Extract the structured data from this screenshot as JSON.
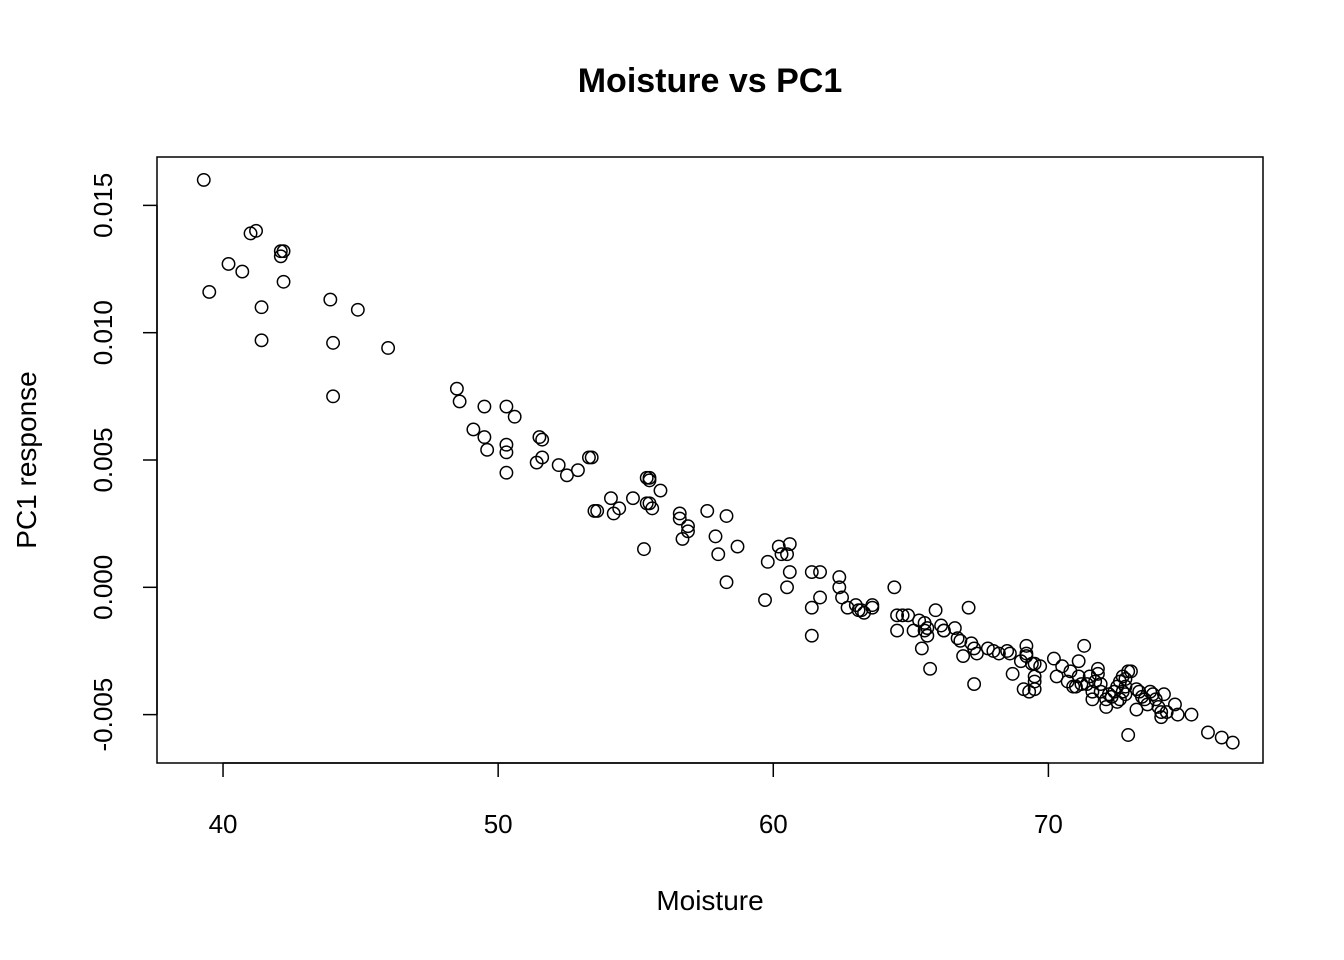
{
  "chart_data": {
    "type": "scatter",
    "title": "Moisture vs PC1",
    "xlabel": "Moisture",
    "ylabel": "PC1  response",
    "xlim": [
      37.6,
      77.8
    ],
    "ylim": [
      -0.0069,
      0.0169
    ],
    "xticks": [
      40,
      50,
      60,
      70
    ],
    "yticks": [
      -0.005,
      0.0,
      0.005,
      0.01,
      0.015
    ],
    "ytick_labels": [
      "-0.005",
      "0.000",
      "0.005",
      "0.010",
      "0.015"
    ],
    "marker": "open-circle",
    "grid": false,
    "legend": "none",
    "points": [
      [
        39.3,
        0.016
      ],
      [
        39.5,
        0.0116
      ],
      [
        40.2,
        0.0127
      ],
      [
        40.7,
        0.0124
      ],
      [
        41.0,
        0.0139
      ],
      [
        41.2,
        0.014
      ],
      [
        41.4,
        0.011
      ],
      [
        41.4,
        0.0097
      ],
      [
        42.1,
        0.013
      ],
      [
        42.1,
        0.0132
      ],
      [
        42.2,
        0.0132
      ],
      [
        42.2,
        0.012
      ],
      [
        43.9,
        0.0113
      ],
      [
        44.0,
        0.0096
      ],
      [
        44.0,
        0.0075
      ],
      [
        44.9,
        0.0109
      ],
      [
        46.0,
        0.0094
      ],
      [
        48.5,
        0.0078
      ],
      [
        48.6,
        0.0073
      ],
      [
        49.1,
        0.0062
      ],
      [
        49.5,
        0.0071
      ],
      [
        49.5,
        0.0059
      ],
      [
        49.6,
        0.0054
      ],
      [
        50.3,
        0.0071
      ],
      [
        50.3,
        0.0056
      ],
      [
        50.3,
        0.0053
      ],
      [
        50.3,
        0.0045
      ],
      [
        50.6,
        0.0067
      ],
      [
        51.4,
        0.0049
      ],
      [
        51.5,
        0.0059
      ],
      [
        51.6,
        0.0058
      ],
      [
        51.6,
        0.0051
      ],
      [
        52.2,
        0.0048
      ],
      [
        52.5,
        0.0044
      ],
      [
        52.9,
        0.0046
      ],
      [
        53.3,
        0.0051
      ],
      [
        53.4,
        0.0051
      ],
      [
        53.5,
        0.003
      ],
      [
        53.6,
        0.003
      ],
      [
        54.1,
        0.0035
      ],
      [
        54.2,
        0.0029
      ],
      [
        54.4,
        0.0031
      ],
      [
        54.9,
        0.0035
      ],
      [
        55.3,
        0.0015
      ],
      [
        55.4,
        0.0043
      ],
      [
        55.4,
        0.0033
      ],
      [
        55.5,
        0.0043
      ],
      [
        55.5,
        0.0042
      ],
      [
        55.5,
        0.0033
      ],
      [
        55.6,
        0.0031
      ],
      [
        55.9,
        0.0038
      ],
      [
        56.6,
        0.0029
      ],
      [
        56.6,
        0.0027
      ],
      [
        56.7,
        0.0019
      ],
      [
        56.9,
        0.0024
      ],
      [
        56.9,
        0.0022
      ],
      [
        57.6,
        0.003
      ],
      [
        57.9,
        0.002
      ],
      [
        58.0,
        0.0013
      ],
      [
        58.3,
        0.0028
      ],
      [
        58.3,
        0.0002
      ],
      [
        58.7,
        0.0016
      ],
      [
        59.7,
        -0.0005
      ],
      [
        59.8,
        0.001
      ],
      [
        60.2,
        0.0016
      ],
      [
        60.3,
        0.0013
      ],
      [
        60.5,
        0.0013
      ],
      [
        60.5,
        0.0
      ],
      [
        60.6,
        0.0017
      ],
      [
        60.6,
        0.0006
      ],
      [
        61.4,
        0.0006
      ],
      [
        61.4,
        -0.0008
      ],
      [
        61.4,
        -0.0019
      ],
      [
        61.7,
        0.0006
      ],
      [
        61.7,
        -0.0004
      ],
      [
        62.4,
        0.0004
      ],
      [
        62.4,
        0.0
      ],
      [
        62.5,
        -0.0004
      ],
      [
        62.7,
        -0.0008
      ],
      [
        63.0,
        -0.0007
      ],
      [
        63.1,
        -0.0009
      ],
      [
        63.2,
        -0.0009
      ],
      [
        63.3,
        -0.001
      ],
      [
        63.6,
        -0.0007
      ],
      [
        63.6,
        -0.0008
      ],
      [
        64.4,
        0.0
      ],
      [
        64.5,
        -0.0011
      ],
      [
        64.5,
        -0.0017
      ],
      [
        64.7,
        -0.0011
      ],
      [
        64.9,
        -0.0011
      ],
      [
        65.1,
        -0.0017
      ],
      [
        65.3,
        -0.0013
      ],
      [
        65.4,
        -0.0024
      ],
      [
        65.5,
        -0.0014
      ],
      [
        65.5,
        -0.0017
      ],
      [
        65.6,
        -0.0016
      ],
      [
        65.6,
        -0.0019
      ],
      [
        65.7,
        -0.0032
      ],
      [
        65.9,
        -0.0009
      ],
      [
        66.1,
        -0.0015
      ],
      [
        66.2,
        -0.0017
      ],
      [
        66.2,
        -0.0017
      ],
      [
        66.6,
        -0.0016
      ],
      [
        66.7,
        -0.002
      ],
      [
        66.8,
        -0.0021
      ],
      [
        66.9,
        -0.0027
      ],
      [
        67.1,
        -0.0008
      ],
      [
        67.2,
        -0.0022
      ],
      [
        67.3,
        -0.0024
      ],
      [
        67.3,
        -0.0038
      ],
      [
        67.4,
        -0.0026
      ],
      [
        67.8,
        -0.0024
      ],
      [
        68.0,
        -0.0025
      ],
      [
        68.2,
        -0.0026
      ],
      [
        68.5,
        -0.0025
      ],
      [
        68.6,
        -0.0026
      ],
      [
        68.7,
        -0.0034
      ],
      [
        69.0,
        -0.0029
      ],
      [
        69.1,
        -0.004
      ],
      [
        69.2,
        -0.0023
      ],
      [
        69.2,
        -0.0026
      ],
      [
        69.2,
        -0.0027
      ],
      [
        69.3,
        -0.0041
      ],
      [
        69.4,
        -0.003
      ],
      [
        69.5,
        -0.0035
      ],
      [
        69.5,
        -0.0037
      ],
      [
        69.5,
        -0.004
      ],
      [
        69.5,
        -0.003
      ],
      [
        69.7,
        -0.0031
      ],
      [
        70.2,
        -0.0028
      ],
      [
        70.3,
        -0.0035
      ],
      [
        70.5,
        -0.0031
      ],
      [
        70.7,
        -0.0037
      ],
      [
        70.8,
        -0.0033
      ],
      [
        70.9,
        -0.0039
      ],
      [
        71.0,
        -0.0039
      ],
      [
        71.1,
        -0.0029
      ],
      [
        71.1,
        -0.0035
      ],
      [
        71.2,
        -0.0038
      ],
      [
        71.3,
        -0.0023
      ],
      [
        71.4,
        -0.0038
      ],
      [
        71.5,
        -0.0035
      ],
      [
        71.6,
        -0.0041
      ],
      [
        71.6,
        -0.0044
      ],
      [
        71.7,
        -0.0037
      ],
      [
        71.8,
        -0.0032
      ],
      [
        71.8,
        -0.0034
      ],
      [
        71.9,
        -0.0038
      ],
      [
        71.9,
        -0.0041
      ],
      [
        72.1,
        -0.0044
      ],
      [
        72.1,
        -0.0047
      ],
      [
        72.2,
        -0.0042
      ],
      [
        72.3,
        -0.0043
      ],
      [
        72.4,
        -0.0041
      ],
      [
        72.5,
        -0.0039
      ],
      [
        72.5,
        -0.0045
      ],
      [
        72.6,
        -0.0037
      ],
      [
        72.6,
        -0.0044
      ],
      [
        72.7,
        -0.0041
      ],
      [
        72.7,
        -0.0035
      ],
      [
        72.8,
        -0.0036
      ],
      [
        72.8,
        -0.0039
      ],
      [
        72.8,
        -0.0042
      ],
      [
        72.9,
        -0.0033
      ],
      [
        72.9,
        -0.0058
      ],
      [
        73.0,
        -0.0033
      ],
      [
        73.2,
        -0.004
      ],
      [
        73.2,
        -0.0048
      ],
      [
        73.3,
        -0.0041
      ],
      [
        73.4,
        -0.0043
      ],
      [
        73.5,
        -0.0044
      ],
      [
        73.6,
        -0.0046
      ],
      [
        73.7,
        -0.0041
      ],
      [
        73.8,
        -0.0042
      ],
      [
        73.9,
        -0.0044
      ],
      [
        74.0,
        -0.0047
      ],
      [
        74.1,
        -0.0049
      ],
      [
        74.1,
        -0.0051
      ],
      [
        74.2,
        -0.0042
      ],
      [
        74.3,
        -0.0049
      ],
      [
        74.6,
        -0.0046
      ],
      [
        74.7,
        -0.005
      ],
      [
        75.2,
        -0.005
      ],
      [
        75.8,
        -0.0057
      ],
      [
        76.3,
        -0.0059
      ],
      [
        76.7,
        -0.0061
      ]
    ]
  }
}
